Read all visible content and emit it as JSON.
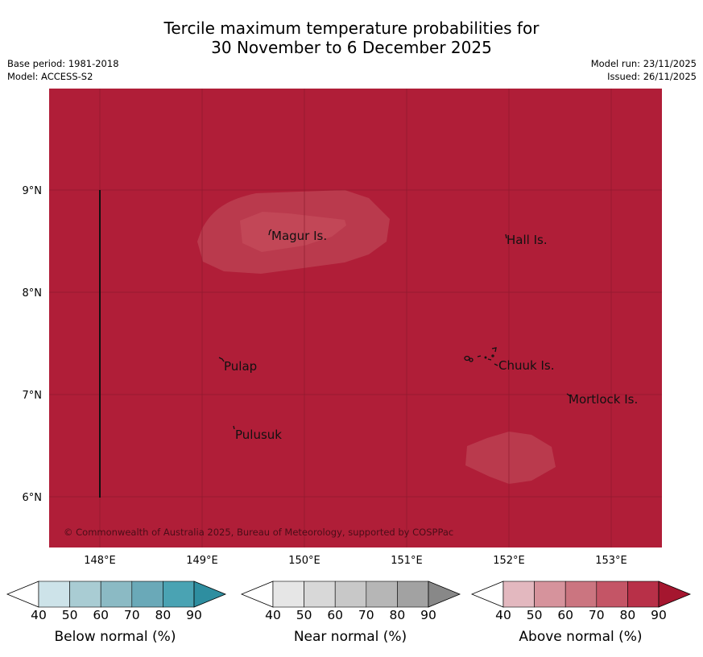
{
  "title_line1": "Tercile maximum temperature probabilities for",
  "title_line2": "30 November to 6 December 2025",
  "meta": {
    "base_period": "Base period: 1981-2018",
    "model": "Model: ACCESS-S2",
    "model_run": "Model run: 23/11/2025",
    "issued": "Issued: 26/11/2025"
  },
  "map": {
    "background_color": "#b01e38",
    "lon_ticks": [
      "148°E",
      "149°E",
      "150°E",
      "151°E",
      "152°E",
      "153°E"
    ],
    "lat_ticks": [
      "9°N",
      "8°N",
      "7°N",
      "6°N"
    ],
    "places": [
      {
        "name": "Magur Is."
      },
      {
        "name": "Hall Is."
      },
      {
        "name": "Pulap"
      },
      {
        "name": "Chuuk Is."
      },
      {
        "name": "Mortlock Is."
      },
      {
        "name": "Pulusuk"
      }
    ],
    "copyright": "© Commonwealth of Australia 2025, Bureau of Meteorology, supported by COSPPac"
  },
  "colorbars": [
    {
      "label": "Below normal (%)",
      "ticks": [
        "40",
        "50",
        "60",
        "70",
        "80",
        "90"
      ],
      "colors": [
        "#ffffff",
        "#cde3e9",
        "#a9ccd3",
        "#8bbac4",
        "#6aa9b8",
        "#4aa3b3",
        "#2e8ea0"
      ]
    },
    {
      "label": "Near normal (%)",
      "ticks": [
        "40",
        "50",
        "60",
        "70",
        "80",
        "90"
      ],
      "colors": [
        "#ffffff",
        "#e6e6e6",
        "#d8d8d8",
        "#c8c8c8",
        "#b6b6b6",
        "#a2a2a2",
        "#888888"
      ]
    },
    {
      "label": "Above normal (%)",
      "ticks": [
        "40",
        "50",
        "60",
        "70",
        "80",
        "90"
      ],
      "colors": [
        "#ffffff",
        "#e3b8bf",
        "#d6939c",
        "#cb7580",
        "#c45566",
        "#b83048",
        "#a5162f"
      ]
    }
  ]
}
